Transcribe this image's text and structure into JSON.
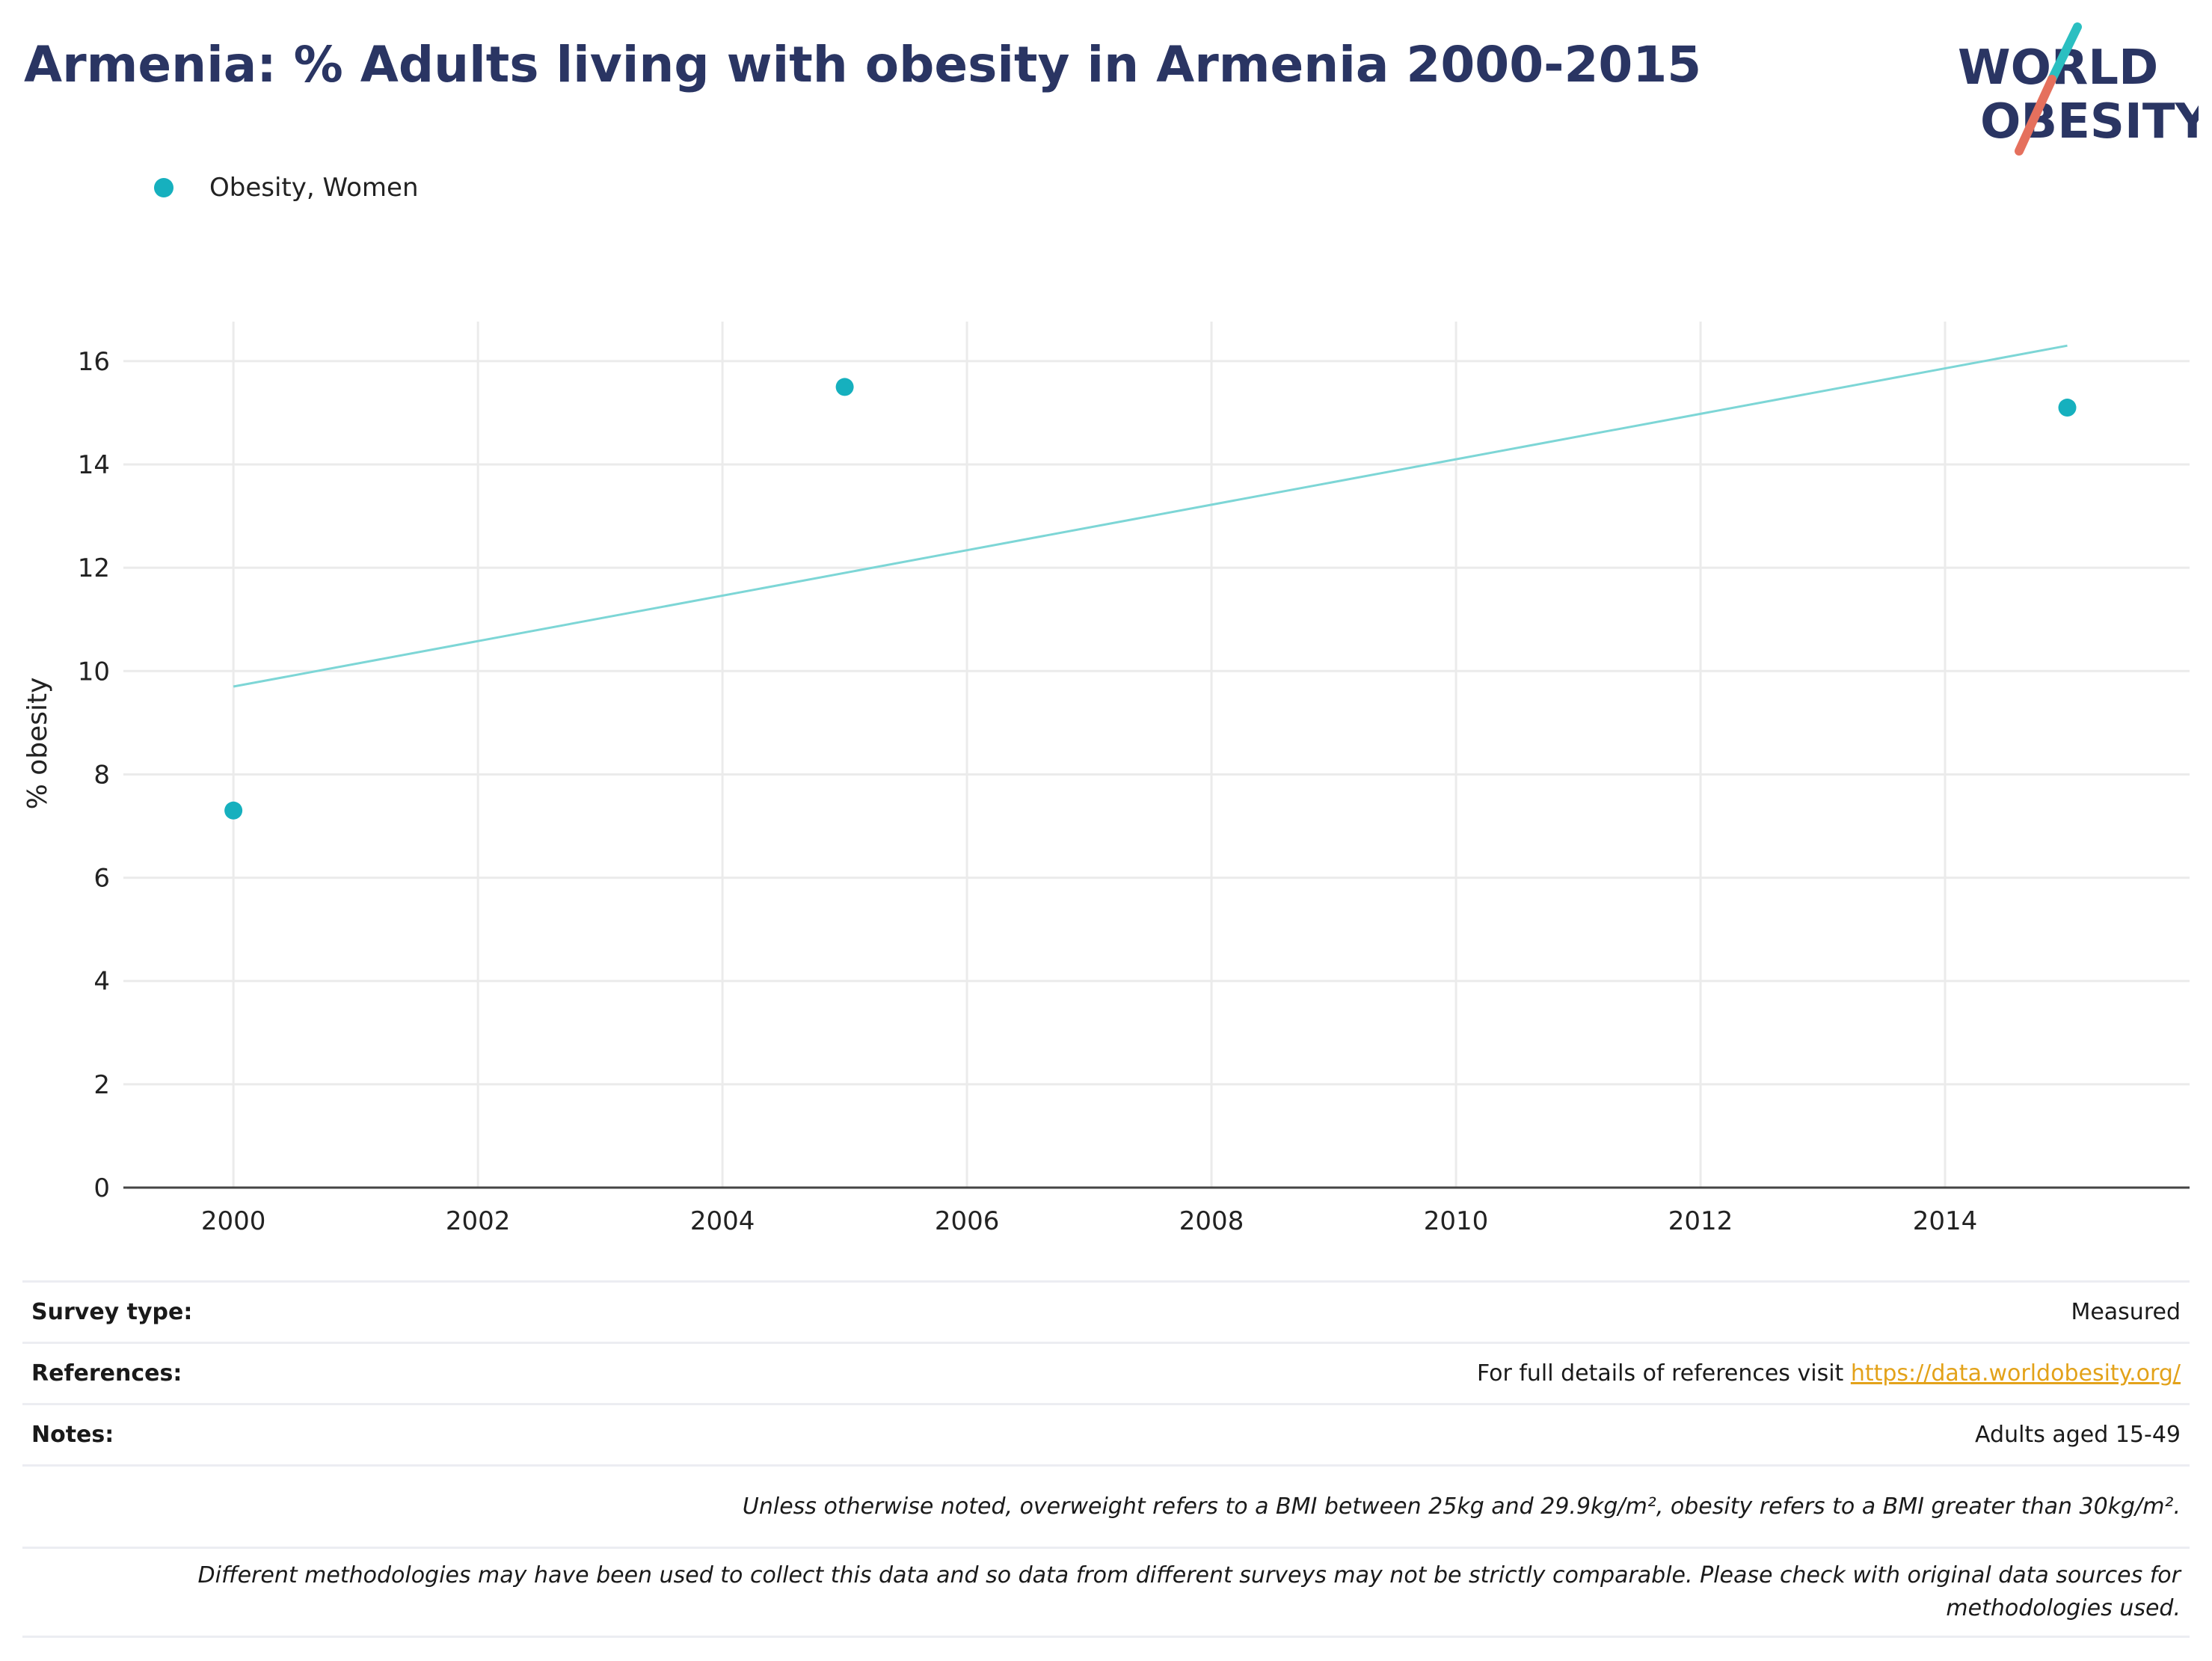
{
  "title": "Armenia: % Adults living with obesity in Armenia 2000-2015",
  "logo": {
    "line1": "WORLD",
    "line2": "OBESITY",
    "colors": {
      "text": "#2a3563",
      "slash_teal": "#2bbfc1",
      "slash_red": "#e5705d"
    }
  },
  "chart_data": {
    "type": "scatter",
    "title": "Armenia: % Adults living with obesity in Armenia 2000-2015",
    "xlabel": "",
    "ylabel": "% obesity",
    "xlim": [
      1999.1,
      2016
    ],
    "ylim": [
      0,
      17.2
    ],
    "x_ticks": [
      2000,
      2002,
      2004,
      2006,
      2008,
      2010,
      2012,
      2014
    ],
    "y_ticks": [
      0,
      2,
      4,
      6,
      8,
      10,
      12,
      14,
      16
    ],
    "grid": true,
    "legend": "top-left",
    "series": [
      {
        "name": "Obesity, Women",
        "color": "#16b0be",
        "points": [
          {
            "x": 2000,
            "y": 7.3
          },
          {
            "x": 2005,
            "y": 15.5
          },
          {
            "x": 2015,
            "y": 15.1
          }
        ]
      }
    ],
    "trendline": {
      "color": "#7dd6d6",
      "points": [
        {
          "x": 2000,
          "y": 9.7
        },
        {
          "x": 2015,
          "y": 16.3
        }
      ]
    }
  },
  "info": {
    "survey_type_label": "Survey type:",
    "survey_type_value": "Measured",
    "references_label": "References:",
    "references_text": "For full details of references visit ",
    "references_link": "https://data.worldobesity.org/",
    "notes_label": "Notes:",
    "notes_value": "Adults aged 15-49",
    "definition_note": "Unless otherwise noted, overweight refers to a BMI between 25kg and 29.9kg/m², obesity refers to a BMI greater than 30kg/m².",
    "methodology_note": "Different methodologies may have been used to collect this data and so data from different surveys may not be strictly comparable. Please check with original data sources for methodologies used."
  }
}
